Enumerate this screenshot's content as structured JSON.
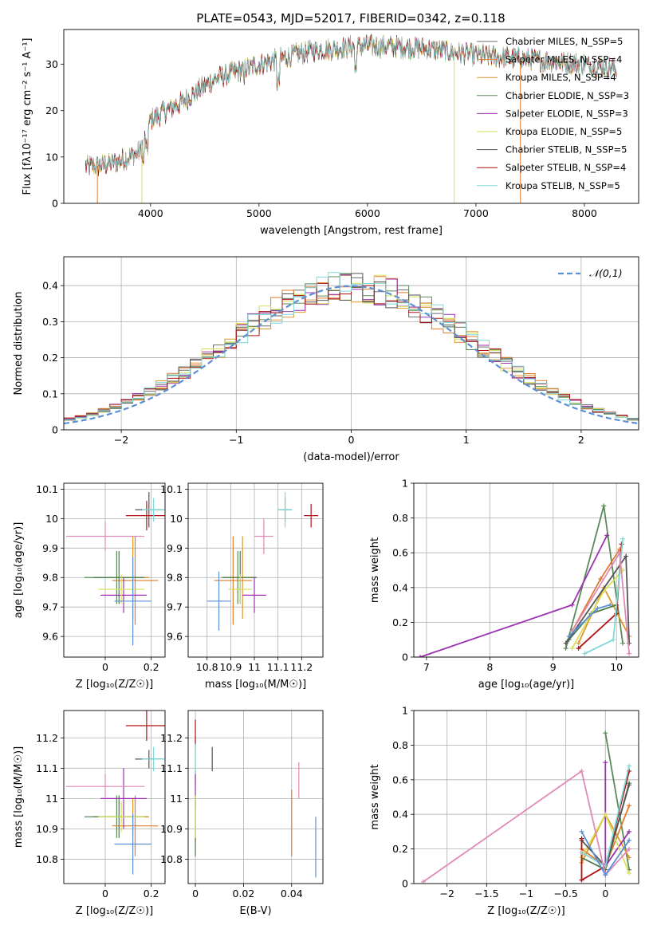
{
  "title": "PLATE=0543, MJD=52017, FIBERID=0342, z=0.118",
  "colors": [
    "#6e6e6e",
    "#e07b2c",
    "#e0962c",
    "#5a8a5a",
    "#9b30b0",
    "#d6e05a",
    "#555555",
    "#b01010",
    "#7fd8d8"
  ],
  "chart_data": [
    {
      "id": "spectrum",
      "type": "line",
      "xlabel": "wavelength [Angstrom, rest frame]",
      "ylabel": "Flux [fλ10⁻¹⁷ erg cm⁻² s⁻¹ A⁻¹]",
      "xlim": [
        3200,
        8500
      ],
      "ylim": [
        0,
        37.5
      ],
      "xticks": [
        4000,
        5000,
        6000,
        7000,
        8000
      ],
      "yticks": [
        0,
        10,
        20,
        30
      ],
      "grid": false,
      "legend_position": "right",
      "series": [
        {
          "name": "Chabrier MILES, N_SSP=5"
        },
        {
          "name": "Salpeter MILES, N_SSP=4"
        },
        {
          "name": "Kroupa MILES, N_SSP=4"
        },
        {
          "name": "Chabrier ELODIE, N_SSP=3"
        },
        {
          "name": "Salpeter ELODIE, N_SSP=3"
        },
        {
          "name": "Kroupa ELODIE, N_SSP=5"
        },
        {
          "name": "Chabrier STELIB, N_SSP=5"
        },
        {
          "name": "Salpeter STELIB, N_SSP=4"
        },
        {
          "name": "Kroupa STELIB, N_SSP=5"
        }
      ],
      "continuum": {
        "x": [
          3500,
          3700,
          3900,
          4000,
          4300,
          4600,
          5000,
          5500,
          6000,
          6500,
          7000,
          7500,
          8000,
          8300
        ],
        "y": [
          8,
          9,
          11,
          18,
          22,
          27,
          30,
          33,
          34,
          33.5,
          32,
          31,
          30,
          29
        ]
      }
    },
    {
      "id": "residuals",
      "type": "histogram",
      "xlabel": "(data-model)/error",
      "ylabel": "Normed distribution",
      "xlim": [
        -2.5,
        2.5
      ],
      "ylim": [
        0,
        0.48
      ],
      "xticks": [
        -2,
        -1,
        0,
        1,
        2
      ],
      "yticks": [
        0.0,
        0.1,
        0.2,
        0.3,
        0.4
      ],
      "grid": true,
      "legend": "𝒩(0,1)",
      "legend_position": "top-right",
      "bins": 50
    },
    {
      "id": "age_vs_Z",
      "type": "errorbar",
      "xlabel": "Z [log₁₀(Z/Z☉)]",
      "ylabel": "age  [log₁₀(age/yr)]",
      "xlim": [
        -0.18,
        0.26
      ],
      "ylim": [
        9.53,
        10.12
      ],
      "xticks": [
        0.0,
        0.2
      ],
      "yticks": [
        9.6,
        9.7,
        9.8,
        9.9,
        10.0,
        10.1
      ],
      "grid": true,
      "points": [
        {
          "x": 0.05,
          "y": 9.8,
          "xerr": 0.14,
          "yerr": 0.09
        },
        {
          "x": 0.13,
          "y": 9.79,
          "xerr": 0.1,
          "yerr": 0.15
        },
        {
          "x": 0.12,
          "y": 9.8,
          "xerr": 0.07,
          "yerr": 0.14
        },
        {
          "x": 0.06,
          "y": 9.8,
          "xerr": 0.11,
          "yerr": 0.09
        },
        {
          "x": 0.08,
          "y": 9.74,
          "xerr": 0.1,
          "yerr": 0.06
        },
        {
          "x": 0.07,
          "y": 9.76,
          "xerr": 0.1,
          "yerr": 0.05
        },
        {
          "x": 0.19,
          "y": 10.03,
          "xerr": 0.06,
          "yerr": 0.06
        },
        {
          "x": 0.18,
          "y": 10.01,
          "xerr": 0.09,
          "yerr": 0.05
        },
        {
          "x": 0.21,
          "y": 10.03,
          "xerr": 0.05,
          "yerr": 0.04
        },
        {
          "x": 0.0,
          "y": 9.94,
          "xerr": 0.17,
          "yerr": 0.05
        },
        {
          "x": 0.12,
          "y": 9.72,
          "xerr": 0.08,
          "yerr": 0.15
        }
      ]
    },
    {
      "id": "age_vs_mass",
      "type": "errorbar",
      "xlabel": "mass [log₁₀(M/M☉)]",
      "ylabel": "",
      "xlim": [
        10.72,
        11.29
      ],
      "ylim": [
        9.53,
        10.12
      ],
      "xticks": [
        10.8,
        10.9,
        11.0,
        11.1,
        11.2
      ],
      "yticks": [
        9.6,
        9.7,
        9.8,
        9.9,
        10.0,
        10.1
      ],
      "grid": true,
      "points": [
        {
          "x": 10.93,
          "y": 9.8,
          "xerr": 0.07,
          "yerr": 0.09
        },
        {
          "x": 10.91,
          "y": 9.79,
          "xerr": 0.08,
          "yerr": 0.15
        },
        {
          "x": 10.95,
          "y": 9.8,
          "xerr": 0.06,
          "yerr": 0.14
        },
        {
          "x": 10.94,
          "y": 9.8,
          "xerr": 0.07,
          "yerr": 0.09
        },
        {
          "x": 11.0,
          "y": 9.74,
          "xerr": 0.05,
          "yerr": 0.06
        },
        {
          "x": 10.94,
          "y": 9.76,
          "xerr": 0.05,
          "yerr": 0.05
        },
        {
          "x": 11.13,
          "y": 10.03,
          "xerr": 0.03,
          "yerr": 0.04
        },
        {
          "x": 11.24,
          "y": 10.01,
          "xerr": 0.03,
          "yerr": 0.04
        },
        {
          "x": 11.13,
          "y": 10.03,
          "xerr": 0.03,
          "yerr": 0.06
        },
        {
          "x": 11.04,
          "y": 9.94,
          "xerr": 0.04,
          "yerr": 0.06
        },
        {
          "x": 10.85,
          "y": 9.72,
          "xerr": 0.05,
          "yerr": 0.1
        }
      ]
    },
    {
      "id": "weight_vs_age",
      "type": "line",
      "xlabel": "age  [log₁₀(age/yr)]",
      "ylabel": "mass weight",
      "xlim": [
        6.8,
        10.35
      ],
      "ylim": [
        0,
        1.0
      ],
      "xticks": [
        7,
        8,
        9,
        10
      ],
      "yticks": [
        0.0,
        0.2,
        0.4,
        0.6,
        0.8,
        1.0
      ],
      "grid": true
    },
    {
      "id": "mass_vs_Z",
      "type": "errorbar",
      "xlabel": "Z [log₁₀(Z/Z☉)]",
      "ylabel": "mass [log₁₀(M/M☉)]",
      "xlim": [
        -0.18,
        0.26
      ],
      "ylim": [
        10.72,
        11.29
      ],
      "xticks": [
        0.0,
        0.2
      ],
      "yticks": [
        10.8,
        10.9,
        11.0,
        11.1,
        11.2
      ],
      "grid": true,
      "points": [
        {
          "x": 0.05,
          "y": 10.94,
          "xerr": 0.14,
          "yerr": 0.07
        },
        {
          "x": 0.13,
          "y": 10.91,
          "xerr": 0.1,
          "yerr": 0.1
        },
        {
          "x": 0.12,
          "y": 10.94,
          "xerr": 0.07,
          "yerr": 0.06
        },
        {
          "x": 0.06,
          "y": 10.94,
          "xerr": 0.11,
          "yerr": 0.07
        },
        {
          "x": 0.08,
          "y": 11.0,
          "xerr": 0.1,
          "yerr": 0.1
        },
        {
          "x": 0.07,
          "y": 10.94,
          "xerr": 0.1,
          "yerr": 0.05
        },
        {
          "x": 0.19,
          "y": 11.13,
          "xerr": 0.06,
          "yerr": 0.03
        },
        {
          "x": 0.18,
          "y": 11.24,
          "xerr": 0.09,
          "yerr": 0.05
        },
        {
          "x": 0.21,
          "y": 11.13,
          "xerr": 0.05,
          "yerr": 0.04
        },
        {
          "x": 0.0,
          "y": 11.04,
          "xerr": 0.17,
          "yerr": 0.04
        },
        {
          "x": 0.12,
          "y": 10.85,
          "xerr": 0.08,
          "yerr": 0.1
        }
      ]
    },
    {
      "id": "mass_vs_ebv",
      "type": "errorbar",
      "xlabel": "E(B-V)",
      "ylabel": "",
      "xlim": [
        -0.003,
        0.053
      ],
      "ylim": [
        10.72,
        11.29
      ],
      "xticks": [
        0.0,
        0.02,
        0.04
      ],
      "yticks": [
        10.8,
        10.9,
        11.0,
        11.1,
        11.2
      ],
      "grid": true,
      "points": [
        {
          "x": 0.0,
          "y": 10.93,
          "xerr": 0,
          "yerr": 0.07
        },
        {
          "x": 0.04,
          "y": 10.92,
          "xerr": 0,
          "yerr": 0.11
        },
        {
          "x": 0.0,
          "y": 11.1,
          "xerr": 0,
          "yerr": 0.06
        },
        {
          "x": 0.0,
          "y": 10.91,
          "xerr": 0,
          "yerr": 0.1
        },
        {
          "x": 0.0,
          "y": 11.03,
          "xerr": 0,
          "yerr": 0.06
        },
        {
          "x": 0.0,
          "y": 10.94,
          "xerr": 0,
          "yerr": 0.07
        },
        {
          "x": 0.007,
          "y": 11.13,
          "xerr": 0,
          "yerr": 0.04
        },
        {
          "x": 0.0,
          "y": 11.21,
          "xerr": 0,
          "yerr": 0.05
        },
        {
          "x": 0.0,
          "y": 11.13,
          "xerr": 0,
          "yerr": 0.05
        },
        {
          "x": 0.043,
          "y": 11.06,
          "xerr": 0,
          "yerr": 0.06
        },
        {
          "x": 0.05,
          "y": 10.84,
          "xerr": 0,
          "yerr": 0.1
        }
      ]
    },
    {
      "id": "weight_vs_Z",
      "type": "line",
      "xlabel": "Z [log₁₀(Z/Z☉)]",
      "ylabel": "mass weight",
      "xlim": [
        -2.42,
        0.42
      ],
      "ylim": [
        0,
        1.0
      ],
      "xticks": [
        -2.0,
        -1.5,
        -1.0,
        -0.5,
        0.0
      ],
      "yticks": [
        0.0,
        0.2,
        0.4,
        0.6,
        0.8,
        1.0
      ],
      "grid": true
    }
  ]
}
